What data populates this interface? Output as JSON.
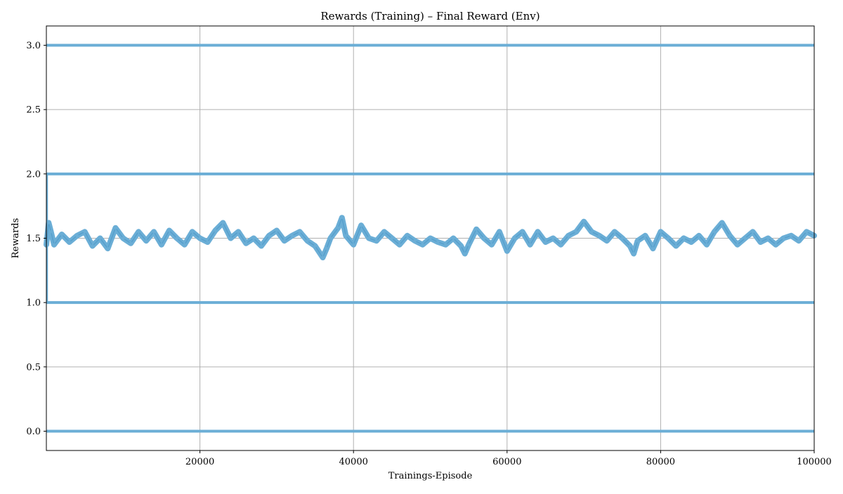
{
  "chart_data": {
    "type": "line",
    "title": "Rewards (Training) – Final Reward (Env)",
    "xlabel": "Trainings-Episode",
    "ylabel": "Rewards",
    "xlim": [
      0,
      100000
    ],
    "ylim": [
      -0.15,
      3.15
    ],
    "xticks": [
      20000,
      40000,
      60000,
      80000,
      100000
    ],
    "xtick_labels": [
      "20000",
      "40000",
      "60000",
      "80000",
      "100000"
    ],
    "yticks": [
      0.0,
      0.5,
      1.0,
      1.5,
      2.0,
      2.5,
      3.0
    ],
    "ytick_labels": [
      "0.0",
      "0.5",
      "1.0",
      "1.5",
      "2.0",
      "2.5",
      "3.0"
    ],
    "grid": true,
    "series": [
      {
        "color": "#6baed6",
        "discrete_levels": [
          0,
          1,
          2,
          3
        ],
        "x": [
          0,
          300,
          600,
          1000,
          2000,
          3000,
          4000,
          5000,
          6000,
          7000,
          8000,
          9000,
          10000,
          11000,
          12000,
          13000,
          14000,
          15000,
          16000,
          17000,
          18000,
          19000,
          20000,
          21000,
          22000,
          23000,
          24000,
          25000,
          26000,
          27000,
          28000,
          29000,
          30000,
          31000,
          32000,
          33000,
          34000,
          35000,
          36000,
          36500,
          37000,
          38000,
          38500,
          39000,
          40000,
          41000,
          42000,
          43000,
          44000,
          45000,
          46000,
          47000,
          48000,
          49000,
          50000,
          51000,
          52000,
          53000,
          54000,
          54500,
          55000,
          56000,
          57000,
          58000,
          59000,
          60000,
          61000,
          62000,
          63000,
          64000,
          65000,
          66000,
          67000,
          68000,
          69000,
          70000,
          71000,
          72000,
          73000,
          74000,
          75000,
          76000,
          76500,
          77000,
          78000,
          79000,
          80000,
          81000,
          82000,
          83000,
          84000,
          85000,
          86000,
          87000,
          88000,
          89000,
          90000,
          91000,
          92000,
          93000,
          94000,
          95000,
          96000,
          97000,
          98000,
          99000,
          100000
        ],
        "y": [
          1.45,
          1.62,
          1.55,
          1.45,
          1.53,
          1.47,
          1.52,
          1.55,
          1.44,
          1.5,
          1.42,
          1.58,
          1.5,
          1.46,
          1.55,
          1.48,
          1.55,
          1.45,
          1.56,
          1.5,
          1.45,
          1.55,
          1.5,
          1.47,
          1.56,
          1.62,
          1.5,
          1.55,
          1.46,
          1.5,
          1.44,
          1.52,
          1.56,
          1.48,
          1.52,
          1.55,
          1.48,
          1.44,
          1.35,
          1.42,
          1.5,
          1.58,
          1.66,
          1.52,
          1.45,
          1.6,
          1.5,
          1.48,
          1.55,
          1.5,
          1.45,
          1.52,
          1.48,
          1.45,
          1.5,
          1.47,
          1.45,
          1.5,
          1.44,
          1.38,
          1.45,
          1.57,
          1.5,
          1.45,
          1.55,
          1.4,
          1.5,
          1.55,
          1.45,
          1.55,
          1.47,
          1.5,
          1.45,
          1.52,
          1.55,
          1.63,
          1.55,
          1.52,
          1.48,
          1.55,
          1.5,
          1.44,
          1.38,
          1.48,
          1.52,
          1.42,
          1.55,
          1.5,
          1.44,
          1.5,
          1.47,
          1.52,
          1.45,
          1.55,
          1.62,
          1.52,
          1.45,
          1.5,
          1.55,
          1.47,
          1.5,
          1.45,
          1.5,
          1.52,
          1.48,
          1.55,
          1.52
        ]
      }
    ]
  }
}
